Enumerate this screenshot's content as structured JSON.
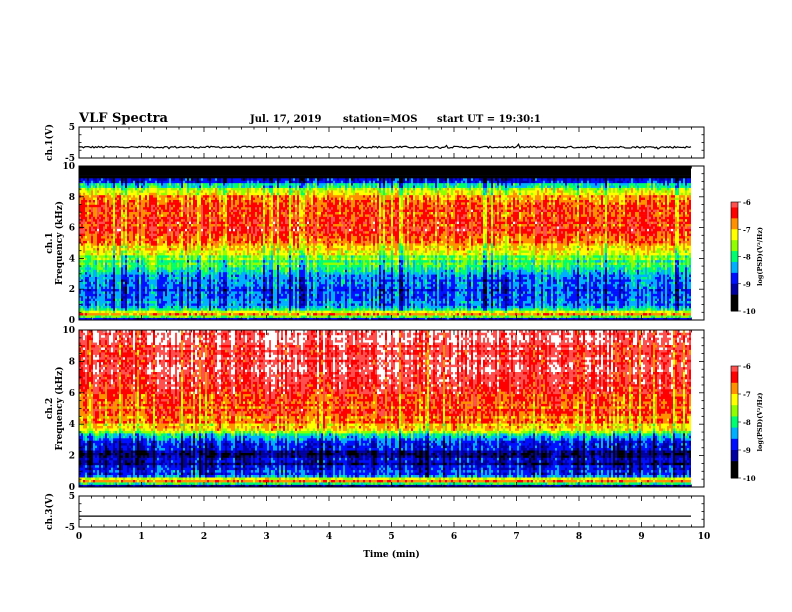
{
  "header": {
    "title": "VLF Spectra",
    "date": "Jul. 17, 2019",
    "station": "station=MOS",
    "start_ut": "start UT = 19:30:1"
  },
  "colormap": [
    "#000000",
    "#0000a0",
    "#0010ff",
    "#00b0ff",
    "#00ff70",
    "#90ff00",
    "#ffff00",
    "#ff9000",
    "#ff0000",
    "#ff5050",
    "#ffffff"
  ],
  "chart_data": [
    {
      "type": "line",
      "id": "ch1",
      "ylabel": "ch.1(V)",
      "ylim": [
        -5,
        5
      ],
      "yticks": [
        5,
        -5
      ],
      "xlim": [
        0,
        10
      ],
      "series": [
        {
          "values_description": "",
          "level": -1.5
        }
      ]
    },
    {
      "type": "heatmap",
      "id": "spec1",
      "ylabel": "ch.1\nFrequency (kHz)",
      "ylabel_lines": [
        "ch.1",
        "Frequency (kHz)"
      ],
      "ylim": [
        0,
        10
      ],
      "yticks": [
        0,
        2,
        4,
        6,
        8,
        10
      ],
      "xlim": [
        0,
        10
      ],
      "colorbar": {
        "label": "log(PSD)(V²/Hz)",
        "range": [
          -10,
          -6
        ],
        "ticks": [
          "-6",
          "-7",
          "-8",
          "-9",
          "-10"
        ]
      },
      "profile": [
        {
          "f": 0.0,
          "level": 1
        },
        {
          "f": 0.4,
          "level": 7
        },
        {
          "f": 0.8,
          "level": 3
        },
        {
          "f": 1.5,
          "level": 2
        },
        {
          "f": 2.5,
          "level": 3
        },
        {
          "f": 3.5,
          "level": 4
        },
        {
          "f": 4.5,
          "level": 6
        },
        {
          "f": 5.5,
          "level": 8
        },
        {
          "f": 7.0,
          "level": 8
        },
        {
          "f": 8.0,
          "level": 7
        },
        {
          "f": 8.7,
          "level": 4
        },
        {
          "f": 9.2,
          "level": 1
        },
        {
          "f": 10.0,
          "level": 0
        }
      ]
    },
    {
      "type": "heatmap",
      "id": "spec2",
      "ylabel": "ch.2\nFrequency (kHz)",
      "ylabel_lines": [
        "ch.2",
        "Frequency (kHz)"
      ],
      "ylim": [
        0,
        10
      ],
      "yticks": [
        0,
        2,
        4,
        6,
        8,
        10
      ],
      "xlim": [
        0,
        10
      ],
      "colorbar": {
        "label": "log(PSD)(V²/Hz)",
        "range": [
          -10,
          -6
        ],
        "ticks": [
          "-6",
          "-7",
          "-8",
          "-9",
          "-10"
        ]
      },
      "profile": [
        {
          "f": 0.0,
          "level": 0
        },
        {
          "f": 0.4,
          "level": 7
        },
        {
          "f": 0.8,
          "level": 2
        },
        {
          "f": 2.0,
          "level": 1
        },
        {
          "f": 3.0,
          "level": 3
        },
        {
          "f": 4.0,
          "level": 7
        },
        {
          "f": 5.5,
          "level": 8
        },
        {
          "f": 7.0,
          "level": 9
        },
        {
          "f": 9.0,
          "level": 9
        },
        {
          "f": 10.0,
          "level": 9
        }
      ]
    },
    {
      "type": "line",
      "id": "ch3",
      "ylabel": "ch.3(V)",
      "ylim": [
        -5,
        5
      ],
      "yticks": [
        5,
        -5
      ],
      "xlim": [
        0,
        10
      ],
      "xlabel": "Time (min)",
      "xticks": [
        0,
        1,
        2,
        3,
        4,
        5,
        6,
        7,
        8,
        9,
        10
      ],
      "series": [
        {
          "level": -1.5
        }
      ]
    }
  ]
}
